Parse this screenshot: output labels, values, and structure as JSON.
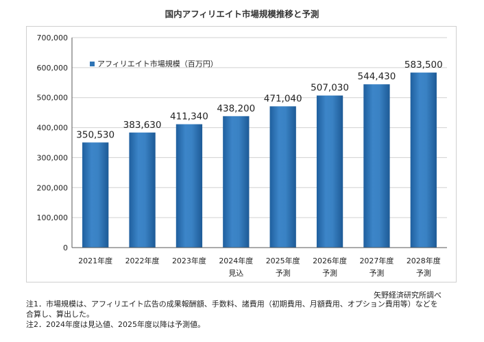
{
  "title": "国内アフィリエイト市場規模推移と予測",
  "source": "矢野経済研究所調べ",
  "notes": [
    "注1．市場規模は、アフィリエイト広告の成果報酬額、手数料、諸費用（初期費用、月額費用、オプション費用等）などを",
    "合算し、算出した。",
    "注2．2024年度は見込値、2025年度以降は予測値。"
  ],
  "colors": {
    "bar": "#2f74b5",
    "grid": "#d0d0d0",
    "axis": "#333333"
  },
  "chart_data": {
    "type": "bar",
    "categories": [
      "2021年度",
      "2022年度",
      "2023年度",
      "2024年度",
      "2025年度",
      "2026年度",
      "2027年度",
      "2028年度"
    ],
    "category_sublabels": [
      "",
      "",
      "",
      "見込",
      "予測",
      "予測",
      "予測",
      "予測"
    ],
    "series": [
      {
        "name": "アフィリエイト市場規模（百万円）",
        "values": [
          350530,
          383630,
          411340,
          438200,
          471040,
          507030,
          544430,
          583500
        ]
      }
    ],
    "value_labels": [
      "350,530",
      "383,630",
      "411,340",
      "438,200",
      "471,040",
      "507,030",
      "544,430",
      "583,500"
    ],
    "yticks": [
      0,
      100000,
      200000,
      300000,
      400000,
      500000,
      600000,
      700000
    ],
    "ytick_labels": [
      "0",
      "100,000",
      "200,000",
      "300,000",
      "400,000",
      "500,000",
      "600,000",
      "700,000"
    ],
    "ylim": [
      0,
      700000
    ],
    "grid": true,
    "legend_position": "top-left"
  }
}
